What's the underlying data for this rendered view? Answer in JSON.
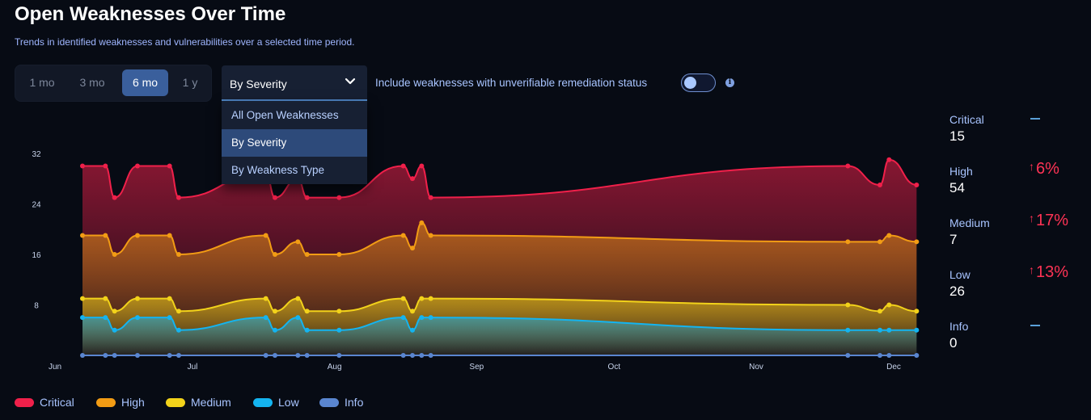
{
  "header": {
    "title": "Open Weaknesses Over Time",
    "subtitle": "Trends in identified weaknesses and vulnerabilities over a selected time period."
  },
  "range_buttons": [
    {
      "label": "1 mo",
      "active": false
    },
    {
      "label": "3 mo",
      "active": false
    },
    {
      "label": "6 mo",
      "active": true
    },
    {
      "label": "1 y",
      "active": false
    }
  ],
  "group_select": {
    "value": "By Severity",
    "options": [
      "All Open Weaknesses",
      "By Severity",
      "By Weakness Type"
    ],
    "selected_index": 1
  },
  "toggle": {
    "label": "Include weaknesses with unverifiable remediation status",
    "state": "off"
  },
  "chart_data": {
    "type": "area",
    "stacked": true,
    "x_ticks": [
      "Jun",
      "Jul",
      "Aug",
      "Sep",
      "Oct",
      "Nov",
      "Dec"
    ],
    "x_tick_days": [
      0,
      30,
      61,
      92,
      122,
      153,
      183
    ],
    "xlim_days": [
      0,
      188
    ],
    "y_ticks": [
      8,
      16,
      24,
      32
    ],
    "ylim": [
      0,
      38
    ],
    "x_days": [
      6,
      11,
      13,
      18,
      25,
      27,
      46,
      48,
      53,
      55,
      62,
      76,
      78,
      80,
      82,
      173,
      180,
      182,
      188
    ],
    "series": [
      {
        "name": "Info",
        "color": "#5a86d0",
        "values": [
          0,
          0,
          0,
          0,
          0,
          0,
          0,
          0,
          0,
          0,
          0,
          0,
          0,
          0,
          0,
          0,
          0,
          0,
          0
        ]
      },
      {
        "name": "Low",
        "color": "#14b4f0",
        "values": [
          6,
          6,
          4,
          6,
          6,
          4,
          6,
          4,
          6,
          4,
          4,
          6,
          4,
          6,
          6,
          4,
          4,
          4,
          4
        ]
      },
      {
        "name": "Medium",
        "color": "#f2d21a",
        "values": [
          3,
          3,
          3,
          3,
          3,
          3,
          3,
          3,
          3,
          3,
          3,
          3,
          3,
          3,
          3,
          4,
          3,
          4,
          3
        ]
      },
      {
        "name": "High",
        "color": "#f29c14",
        "values": [
          10,
          10,
          9,
          10,
          10,
          9,
          10,
          9,
          9,
          9,
          9,
          10,
          10,
          12,
          10,
          10,
          11,
          11,
          11
        ]
      },
      {
        "name": "Critical",
        "color": "#f0204a",
        "values": [
          11,
          11,
          9,
          11,
          11,
          9,
          10,
          9,
          10,
          9,
          9,
          11,
          11,
          9,
          6,
          12,
          9,
          12,
          9
        ]
      }
    ]
  },
  "legend": [
    {
      "name": "Critical",
      "color": "#f0204a"
    },
    {
      "name": "High",
      "color": "#f29c14"
    },
    {
      "name": "Medium",
      "color": "#f2d21a"
    },
    {
      "name": "Low",
      "color": "#14b4f0"
    },
    {
      "name": "Info",
      "color": "#5a86d0"
    }
  ],
  "summary": [
    {
      "name": "Critical",
      "count": "15",
      "change": null
    },
    {
      "name": "High",
      "count": "54",
      "change": "6%"
    },
    {
      "name": "Medium",
      "count": "7",
      "change": "17%"
    },
    {
      "name": "Low",
      "count": "26",
      "change": "13%"
    },
    {
      "name": "Info",
      "count": "0",
      "change": null
    }
  ]
}
